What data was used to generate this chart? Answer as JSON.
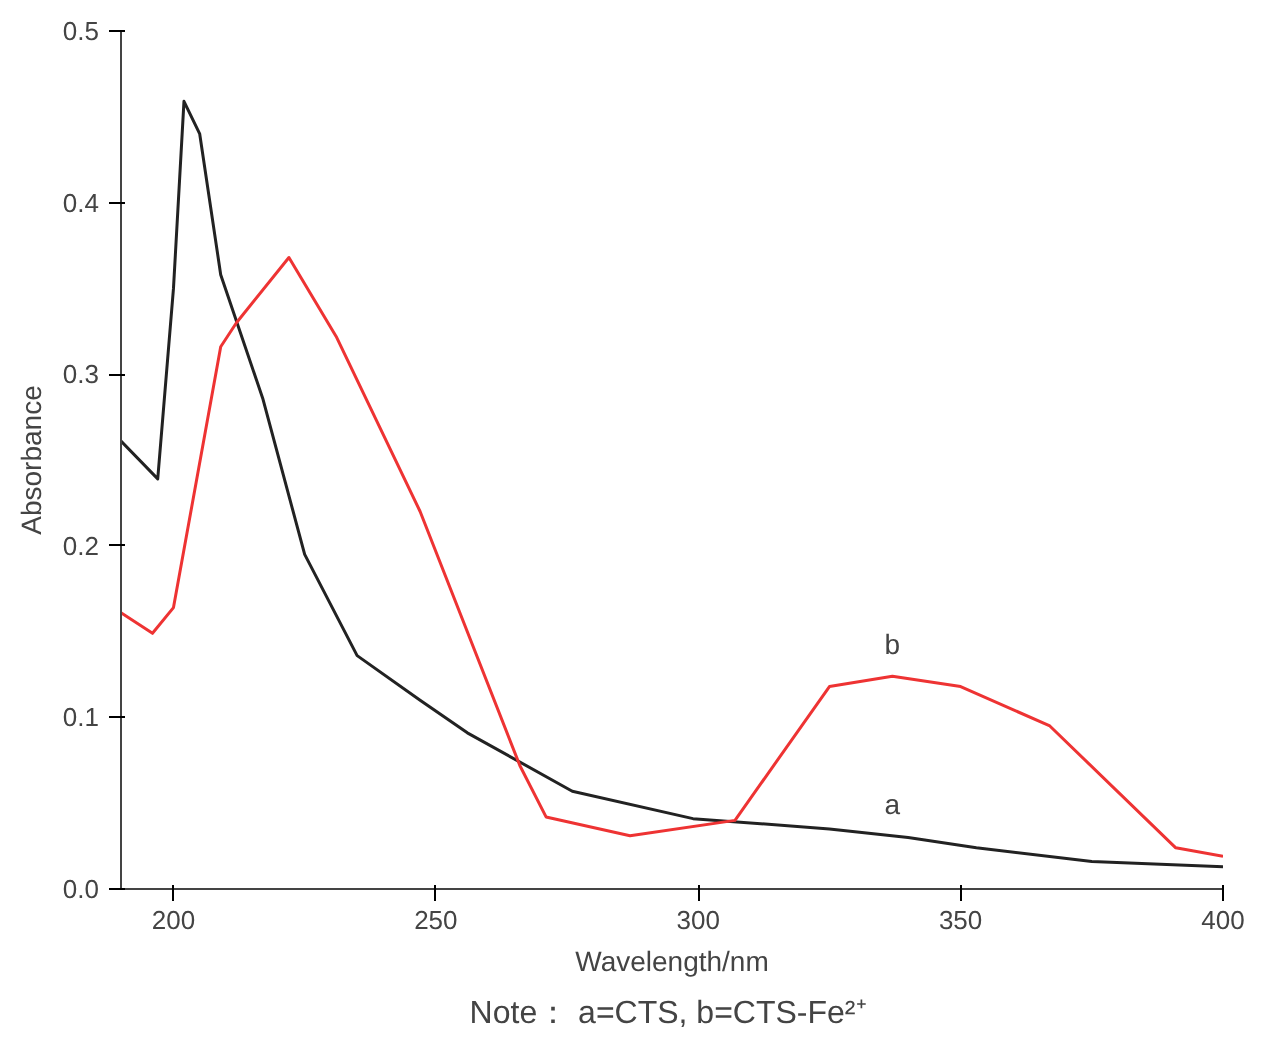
{
  "chart_data": {
    "type": "line",
    "xlabel": "Wavelength/nm",
    "ylabel": "Absorbance",
    "xlim": [
      190,
      400
    ],
    "xticks": [
      200,
      250,
      300,
      350,
      400
    ],
    "ylim": [
      0,
      0.5
    ],
    "yticks": [
      {
        "value": 0,
        "label": "0.0"
      },
      0.1,
      0.2,
      0.3,
      0.4,
      0.5
    ],
    "grid": false,
    "marker": "none",
    "line_style": "solid",
    "series": [
      {
        "name": "a",
        "color": "#222222",
        "x": [
          190,
          197,
          200,
          202,
          205,
          209,
          217,
          225,
          235,
          247,
          256,
          276,
          299,
          325,
          340,
          353,
          375,
          400
        ],
        "values": [
          0.261,
          0.239,
          0.35,
          0.459,
          0.44,
          0.358,
          0.286,
          0.195,
          0.136,
          0.11,
          0.091,
          0.057,
          0.041,
          0.035,
          0.03,
          0.024,
          0.016,
          0.013
        ]
      },
      {
        "name": "b",
        "color": "#ee3333",
        "x": [
          190,
          196,
          200,
          209,
          212,
          222,
          231,
          247,
          266,
          271,
          287,
          307,
          325,
          337,
          350,
          367,
          391,
          400
        ],
        "values": [
          0.161,
          0.149,
          0.164,
          0.316,
          0.33,
          0.368,
          0.322,
          0.22,
          0.072,
          0.042,
          0.031,
          0.04,
          0.118,
          0.124,
          0.118,
          0.095,
          0.024,
          0.019
        ]
      }
    ],
    "annotations": [
      "Note： a=CTS,  b=CTS-Fe²⁺"
    ]
  }
}
